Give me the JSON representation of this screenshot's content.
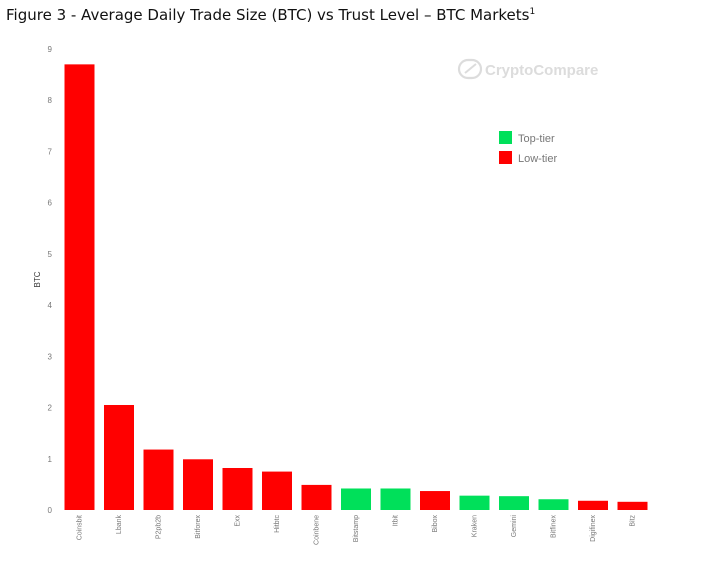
{
  "figure": {
    "title": "Figure 3 - Average Daily Trade Size (BTC) vs Trust Level – BTC Markets",
    "footnote": "1"
  },
  "watermark": {
    "brand": "CryptoCompare"
  },
  "colors": {
    "top_tier": "#00e05a",
    "low_tier": "#ff0000"
  },
  "chart_data": {
    "type": "bar",
    "title": "Average Daily Trade Size (BTC) vs Trust Level – BTC Markets",
    "xlabel": "",
    "ylabel": "BTC",
    "ylim": [
      0,
      9
    ],
    "yticks": [
      0,
      1,
      2,
      3,
      4,
      5,
      6,
      7,
      8,
      9
    ],
    "grid": false,
    "legend_position": "top-right",
    "categories": [
      "Coinsbit",
      "Lbank",
      "P2pb2b",
      "Bitforex",
      "Exx",
      "Hitbtc",
      "Coinbene",
      "Bitstamp",
      "Itbit",
      "Bibox",
      "Kraken",
      "Gemini",
      "Bitfinex",
      "Digifinex",
      "Bitz"
    ],
    "values": [
      8.7,
      2.05,
      1.18,
      0.99,
      0.82,
      0.75,
      0.49,
      0.42,
      0.42,
      0.37,
      0.28,
      0.27,
      0.21,
      0.18,
      0.16
    ],
    "tiers": [
      "Low-tier",
      "Low-tier",
      "Low-tier",
      "Low-tier",
      "Low-tier",
      "Low-tier",
      "Low-tier",
      "Top-tier",
      "Top-tier",
      "Low-tier",
      "Top-tier",
      "Top-tier",
      "Top-tier",
      "Low-tier",
      "Low-tier"
    ],
    "legend": [
      "Top-tier",
      "Low-tier"
    ]
  }
}
